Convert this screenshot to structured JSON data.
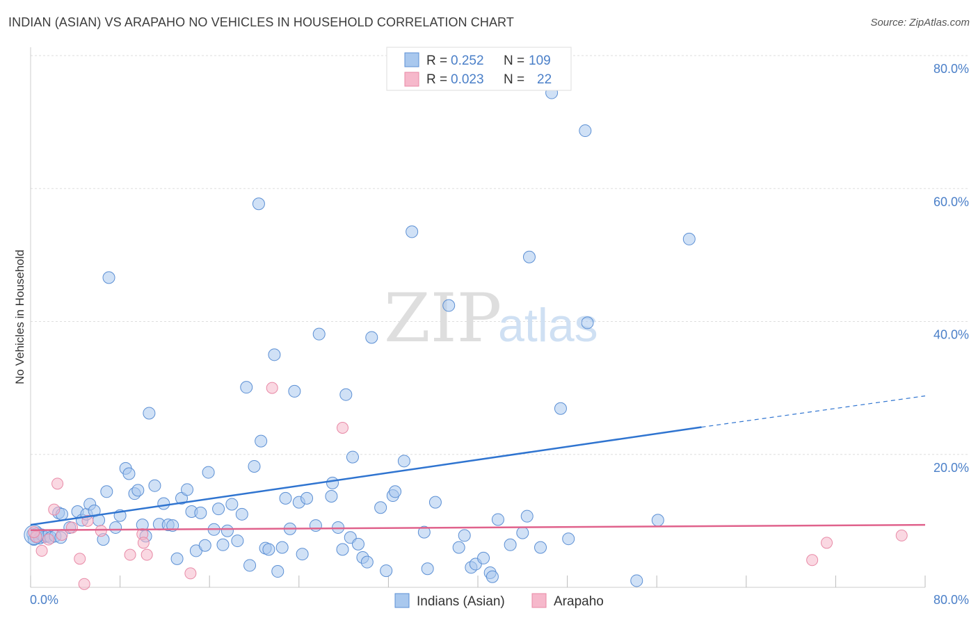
{
  "header": {
    "title": "INDIAN (ASIAN) VS ARAPAHO NO VEHICLES IN HOUSEHOLD CORRELATION CHART",
    "source": "Source: ZipAtlas.com"
  },
  "watermark": {
    "zip": "ZIP",
    "atlas": "atlas"
  },
  "colors": {
    "blue_fill": "#a9c8ee",
    "blue_stroke": "#5b8fd4",
    "blue_line": "#2f74d0",
    "pink_fill": "#f6b8cb",
    "pink_stroke": "#e889a6",
    "pink_line": "#e0628c",
    "axis_label": "#4a7fc8",
    "grid": "#dddddd"
  },
  "stats_legend": [
    {
      "r_label": "R =",
      "r_value": "0.252",
      "n_label": "N =",
      "n_value": "109"
    },
    {
      "r_label": "R =",
      "r_value": "0.023",
      "n_label": "N =",
      "n_value": "22"
    }
  ],
  "chart_data": {
    "type": "scatter",
    "title": "INDIAN (ASIAN) VS ARAPAHO NO VEHICLES IN HOUSEHOLD CORRELATION CHART",
    "xlabel": "",
    "ylabel": "No Vehicles in Household",
    "xlim": [
      0,
      80
    ],
    "ylim": [
      0,
      80
    ],
    "x_tick_labels": [
      "0.0%",
      "80.0%"
    ],
    "y_tick_labels": [
      "20.0%",
      "40.0%",
      "60.0%",
      "80.0%"
    ],
    "y_ticks": [
      20,
      40,
      60,
      80
    ],
    "grid": true,
    "legend_position": "bottom",
    "series": [
      {
        "name": "Indians (Asian)",
        "color": "#a9c8ee",
        "trend": {
          "x0": 0,
          "y0": 9.4,
          "x1": 60,
          "y1": 24.1,
          "dashed_to_x": 80,
          "dashed_to_y": 28.8
        },
        "points": [
          [
            0.2,
            8.0
          ],
          [
            0.3,
            7.2
          ],
          [
            0.5,
            7.6
          ],
          [
            0.6,
            8.1
          ],
          [
            0.8,
            7.4
          ],
          [
            1.0,
            7.9
          ],
          [
            1.2,
            7.6
          ],
          [
            1.5,
            7.7
          ],
          [
            1.8,
            7.5
          ],
          [
            2.2,
            7.7
          ],
          [
            2.7,
            7.5
          ],
          [
            2.5,
            11.2
          ],
          [
            2.8,
            11.0
          ],
          [
            3.5,
            9.0
          ],
          [
            4.2,
            11.4
          ],
          [
            4.6,
            10.1
          ],
          [
            5.0,
            11.0
          ],
          [
            5.3,
            12.5
          ],
          [
            5.7,
            11.5
          ],
          [
            6.1,
            10.1
          ],
          [
            6.5,
            7.2
          ],
          [
            6.8,
            14.4
          ],
          [
            7.0,
            46.6
          ],
          [
            7.6,
            9.0
          ],
          [
            8.0,
            10.8
          ],
          [
            8.5,
            17.9
          ],
          [
            8.8,
            17.1
          ],
          [
            9.3,
            14.1
          ],
          [
            9.6,
            14.6
          ],
          [
            10.0,
            9.4
          ],
          [
            10.3,
            7.7
          ],
          [
            10.6,
            26.2
          ],
          [
            11.1,
            15.3
          ],
          [
            11.5,
            9.5
          ],
          [
            11.9,
            12.6
          ],
          [
            12.3,
            9.4
          ],
          [
            12.7,
            9.3
          ],
          [
            13.1,
            4.3
          ],
          [
            13.5,
            13.4
          ],
          [
            14.0,
            14.7
          ],
          [
            14.4,
            11.4
          ],
          [
            14.8,
            5.5
          ],
          [
            15.2,
            11.2
          ],
          [
            15.6,
            6.3
          ],
          [
            15.9,
            17.3
          ],
          [
            16.4,
            8.7
          ],
          [
            16.8,
            11.8
          ],
          [
            17.2,
            6.4
          ],
          [
            17.6,
            8.5
          ],
          [
            18.0,
            12.5
          ],
          [
            18.5,
            7.0
          ],
          [
            18.9,
            11.0
          ],
          [
            19.3,
            30.1
          ],
          [
            19.6,
            3.3
          ],
          [
            20.0,
            18.2
          ],
          [
            20.4,
            57.7
          ],
          [
            20.6,
            22.0
          ],
          [
            21.0,
            5.9
          ],
          [
            21.3,
            5.7
          ],
          [
            21.8,
            35.0
          ],
          [
            22.1,
            2.4
          ],
          [
            22.5,
            6.0
          ],
          [
            22.8,
            13.4
          ],
          [
            23.2,
            8.8
          ],
          [
            23.6,
            29.5
          ],
          [
            24.0,
            12.8
          ],
          [
            24.3,
            5.0
          ],
          [
            24.7,
            13.4
          ],
          [
            25.5,
            9.3
          ],
          [
            25.8,
            38.1
          ],
          [
            26.9,
            13.7
          ],
          [
            27.0,
            15.7
          ],
          [
            27.5,
            9.0
          ],
          [
            27.9,
            5.7
          ],
          [
            28.2,
            29.0
          ],
          [
            28.6,
            7.5
          ],
          [
            28.8,
            19.6
          ],
          [
            29.3,
            6.5
          ],
          [
            29.7,
            4.5
          ],
          [
            30.1,
            3.8
          ],
          [
            30.5,
            37.6
          ],
          [
            31.3,
            12.0
          ],
          [
            31.8,
            2.5
          ],
          [
            32.4,
            13.8
          ],
          [
            32.6,
            14.4
          ],
          [
            33.4,
            19.0
          ],
          [
            34.1,
            53.5
          ],
          [
            35.2,
            8.3
          ],
          [
            35.5,
            2.8
          ],
          [
            36.2,
            12.8
          ],
          [
            37.4,
            42.4
          ],
          [
            38.3,
            6.0
          ],
          [
            38.8,
            7.8
          ],
          [
            39.4,
            3.0
          ],
          [
            39.8,
            3.5
          ],
          [
            40.5,
            4.4
          ],
          [
            41.1,
            2.2
          ],
          [
            41.3,
            1.6
          ],
          [
            41.8,
            10.2
          ],
          [
            42.9,
            6.4
          ],
          [
            44.0,
            8.2
          ],
          [
            44.4,
            10.7
          ],
          [
            44.6,
            49.7
          ],
          [
            45.6,
            6.0
          ],
          [
            46.6,
            74.4
          ],
          [
            47.4,
            26.9
          ],
          [
            48.1,
            7.3
          ],
          [
            49.6,
            68.7
          ],
          [
            49.8,
            39.8
          ],
          [
            54.2,
            1.0
          ],
          [
            56.1,
            10.1
          ],
          [
            58.9,
            52.4
          ]
        ]
      },
      {
        "name": "Arapaho",
        "color": "#f6b8cb",
        "trend": {
          "x0": 0,
          "y0": 8.6,
          "x1": 80,
          "y1": 9.4
        },
        "points": [
          [
            0.5,
            7.6
          ],
          [
            1.0,
            5.5
          ],
          [
            1.6,
            7.2
          ],
          [
            2.1,
            11.7
          ],
          [
            2.4,
            15.6
          ],
          [
            3.7,
            9.0
          ],
          [
            4.4,
            4.3
          ],
          [
            4.8,
            0.5
          ],
          [
            5.1,
            10.0
          ],
          [
            6.3,
            8.5
          ],
          [
            8.9,
            4.9
          ],
          [
            10.0,
            8.0
          ],
          [
            10.1,
            6.7
          ],
          [
            10.4,
            4.9
          ],
          [
            14.3,
            2.1
          ],
          [
            21.6,
            30.0
          ],
          [
            27.9,
            24.0
          ],
          [
            69.9,
            4.1
          ],
          [
            71.2,
            6.7
          ],
          [
            77.9,
            7.8
          ],
          [
            0.3,
            8.3
          ],
          [
            2.8,
            7.9
          ]
        ]
      }
    ]
  },
  "bottom_legend": [
    {
      "label": "Indians (Asian)"
    },
    {
      "label": "Arapaho"
    }
  ]
}
